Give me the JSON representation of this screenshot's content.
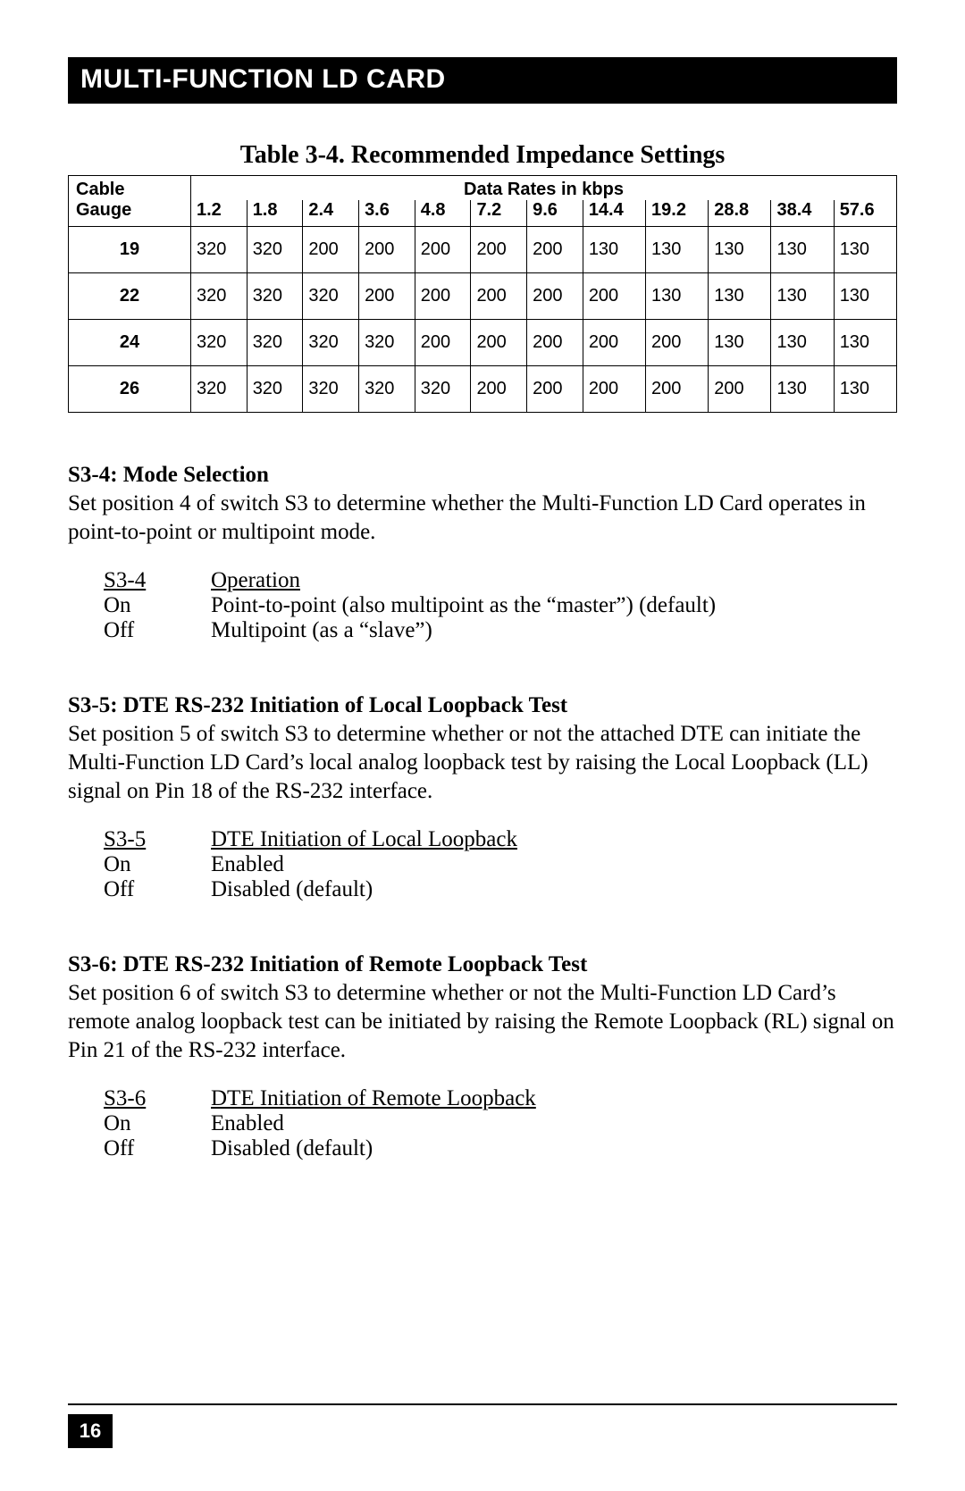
{
  "header": "MULTI-FUNCTION LD CARD",
  "table": {
    "caption": "Table 3-4. Recommended Impedance Settings",
    "rowHeaderTop": "Cable",
    "rowHeaderBottom": "Gauge",
    "spanHeader": "Data Rates in kbps",
    "rates": [
      "1.2",
      "1.8",
      "2.4",
      "3.6",
      "4.8",
      "7.2",
      "9.6",
      "14.4",
      "19.2",
      "28.8",
      "38.4",
      "57.6"
    ],
    "rows": [
      {
        "gauge": "19",
        "values": [
          "320",
          "320",
          "200",
          "200",
          "200",
          "200",
          "200",
          "130",
          "130",
          "130",
          "130",
          "130"
        ]
      },
      {
        "gauge": "22",
        "values": [
          "320",
          "320",
          "320",
          "200",
          "200",
          "200",
          "200",
          "200",
          "130",
          "130",
          "130",
          "130"
        ]
      },
      {
        "gauge": "24",
        "values": [
          "320",
          "320",
          "320",
          "320",
          "200",
          "200",
          "200",
          "200",
          "200",
          "130",
          "130",
          "130"
        ]
      },
      {
        "gauge": "26",
        "values": [
          "320",
          "320",
          "320",
          "320",
          "320",
          "200",
          "200",
          "200",
          "200",
          "200",
          "130",
          "130"
        ]
      }
    ]
  },
  "sections": [
    {
      "title": "S3-4: Mode Selection",
      "body": "Set position 4 of switch S3 to determine whether the Multi-Function LD Card operates in point-to-point or multipoint mode.",
      "defs": {
        "head": {
          "k": "S3-4",
          "v": "Operation"
        },
        "rows": [
          {
            "k": "On",
            "v": "Point-to-point (also multipoint as the “master”) (default)"
          },
          {
            "k": "Off",
            "v": "Multipoint (as a “slave”)"
          }
        ]
      }
    },
    {
      "title": "S3-5: DTE RS-232 Initiation of Local Loopback Test",
      "body": "Set position 5 of switch S3 to determine whether or not the attached DTE can initiate the Multi-Function LD Card’s local analog loopback test by raising the Local Loopback (LL) signal on Pin 18 of the RS-232 interface.",
      "defs": {
        "head": {
          "k": "S3-5",
          "v": "DTE Initiation of Local Loopback"
        },
        "rows": [
          {
            "k": "On",
            "v": "Enabled"
          },
          {
            "k": "Off",
            "v": "Disabled (default)"
          }
        ]
      }
    },
    {
      "title": "S3-6: DTE RS-232 Initiation of Remote Loopback Test",
      "body": "Set position 6 of switch S3 to determine whether or not the Multi-Function LD Card’s remote analog loopback test can be initiated by raising the Remote Loopback (RL) signal on Pin 21 of the RS-232 interface.",
      "defs": {
        "head": {
          "k": "S3-6",
          "v": "DTE Initiation of Remote Loopback"
        },
        "rows": [
          {
            "k": "On",
            "v": "Enabled"
          },
          {
            "k": "Off",
            "v": "Disabled (default)"
          }
        ]
      }
    }
  ],
  "pageNumber": "16"
}
